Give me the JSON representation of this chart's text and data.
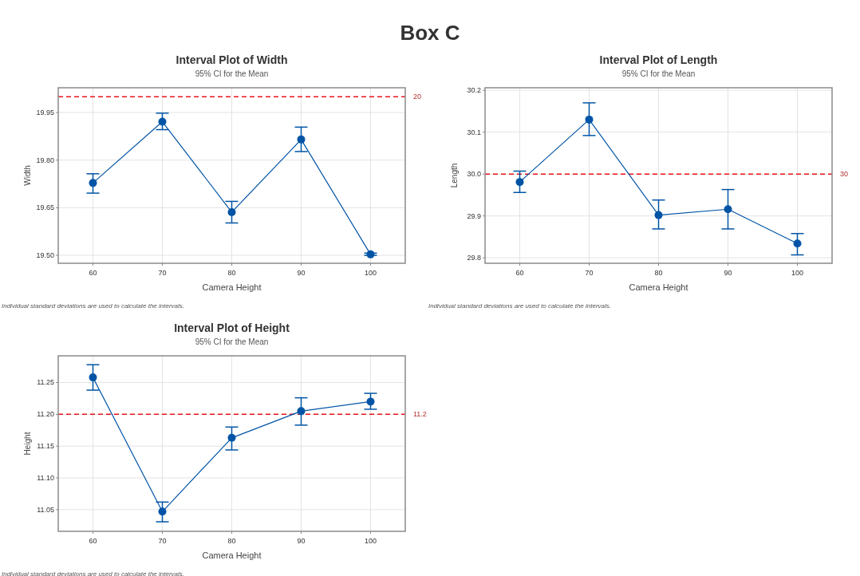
{
  "chart_data": [
    {
      "type": "line",
      "title": "Interval Plot of Width",
      "subtitle": "95% CI for the Mean",
      "xlabel": "Camera Height",
      "ylabel": "Width",
      "x": [
        60,
        70,
        80,
        90,
        100
      ],
      "series": [
        {
          "color": "#0054a6",
          "values": [
            19.728,
            19.921,
            19.636,
            19.865,
            19.503
          ],
          "errors": [
            [
              19.696,
              19.757
            ],
            [
              19.896,
              19.948
            ],
            [
              19.602,
              19.67
            ],
            [
              19.827,
              19.904
            ],
            [
              19.5,
              19.507
            ]
          ]
        }
      ],
      "xlim": [
        55,
        105
      ],
      "xticks": [
        60,
        70,
        80,
        90,
        100
      ],
      "ylim": [
        19.475,
        20.028
      ],
      "yticks": [
        {
          "value": 19.5,
          "label": "19.50"
        },
        {
          "value": 19.65,
          "label": "19.65"
        },
        {
          "value": 19.8,
          "label": "19.80"
        },
        19.95
      ],
      "ref_lines": [
        {
          "axis": "y",
          "value": 20,
          "label": "20",
          "color": "#e8141c",
          "line_style": "dashed"
        }
      ],
      "grid": true,
      "marker": "circle",
      "annotations": [
        "Box C",
        "Individual standard deviations are used to calculate the intervals."
      ]
    },
    {
      "type": "line",
      "title": "Interval Plot of Length",
      "subtitle": "95% CI for the Mean",
      "xlabel": "Camera Height",
      "ylabel": "Length",
      "x": [
        60,
        70,
        80,
        90,
        100
      ],
      "series": [
        {
          "color": "#0054a6",
          "values": [
            29.981,
            30.13,
            29.902,
            29.916,
            29.834
          ],
          "errors": [
            [
              29.956,
              30.007
            ],
            [
              30.092,
              30.17
            ],
            [
              29.869,
              29.938
            ],
            [
              29.869,
              29.963
            ],
            [
              29.807,
              29.858
            ]
          ]
        }
      ],
      "xlim": [
        55,
        105
      ],
      "xticks": [
        60,
        70,
        80,
        90,
        100
      ],
      "ylim": [
        29.787,
        30.206
      ],
      "yticks": [
        29.8,
        29.9,
        {
          "value": 30,
          "label": "30.0"
        },
        30.1,
        30.2
      ],
      "ref_lines": [
        {
          "axis": "y",
          "value": 30,
          "label": "30",
          "color": "#e8141c",
          "line_style": "dashed"
        }
      ],
      "grid": true,
      "marker": "circle",
      "annotations": [
        "Individual standard deviations are used to calculate the intervals."
      ]
    },
    {
      "type": "line",
      "title": "Interval Plot of Height",
      "subtitle": "95% CI for the Mean",
      "xlabel": "Camera Height",
      "ylabel": "Height",
      "x": [
        60,
        70,
        80,
        90,
        100
      ],
      "series": [
        {
          "color": "#0054a6",
          "values": [
            11.258,
            11.047,
            11.163,
            11.205,
            11.22
          ],
          "errors": [
            [
              11.238,
              11.278
            ],
            [
              11.031,
              11.062
            ],
            [
              11.144,
              11.18
            ],
            [
              11.183,
              11.226
            ],
            [
              11.208,
              11.233
            ]
          ]
        }
      ],
      "xlim": [
        55,
        105
      ],
      "xticks": [
        60,
        70,
        80,
        90,
        100
      ],
      "ylim": [
        11.016,
        11.292
      ],
      "yticks": [
        11.05,
        {
          "value": 11.1,
          "label": "11.10"
        },
        11.15,
        {
          "value": 11.2,
          "label": "11.20"
        },
        11.25
      ],
      "ref_lines": [
        {
          "axis": "y",
          "value": 11.2,
          "label": "11.2",
          "color": "#e8141c",
          "line_style": "dashed"
        }
      ],
      "grid": true,
      "marker": "circle",
      "annotations": [
        "Individual standard deviations are used to calculate the intervals."
      ]
    }
  ]
}
